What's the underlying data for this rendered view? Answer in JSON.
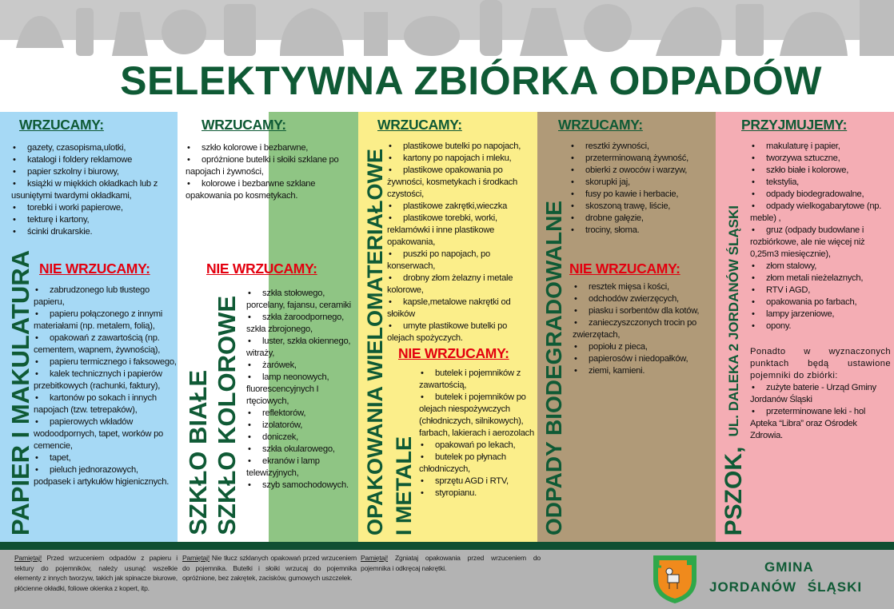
{
  "header": {
    "title": "SELEKTYWNA ZBIÓRKA ODPADÓW"
  },
  "colors": {
    "paper": "#a6d9f5",
    "glass_white": "#ffffff",
    "glass_color": "#8fc584",
    "plastic": "#fbee8a",
    "bio": "#b09a78",
    "pszok": "#f4adb4",
    "dark_green": "#0f5a35",
    "red": "#e3000f"
  },
  "columns": {
    "paper": {
      "vertical_title": "PAPIER I MAKULATURA",
      "ok_heading": "WRZUCAMY:",
      "no_heading": "NIE WRZUCAMY:",
      "ok": [
        "gazety, czasopisma,ulotki,",
        "katalogi i foldery reklamowe",
        "papier szkolny i biurowy,",
        "książki w miękkich okładkach lub z usuniętymi twardymi okładkami,",
        "torebki i worki papierowe,",
        "tekturę i kartony,",
        "ścinki drukarskie."
      ],
      "no": [
        "zabrudzonego lub tłustego papieru,",
        "papieru połączonego z innymi materiałami (np. metalem, folią),",
        "opakowań z zawartością (np. cementem, wapnem, żywnością),",
        "papieru termicznego i faksowego,",
        "kalek technicznych i papierów przebitkowych (rachunki, faktury),",
        "kartonów po sokach i innych napojach (tzw. tetrepaków),",
        "papierowych wkładów wodoodpornych, tapet, worków po cemencie,",
        "tapet,",
        "pieluch jednorazowych, podpasek i artykułów higienicznych."
      ]
    },
    "glass": {
      "vertical_title_1": "SZKŁO BIAŁE",
      "vertical_title_2": "SZKŁO KOLOROWE",
      "ok_heading": "WRZUCAMY:",
      "no_heading": "NIE WRZUCAMY:",
      "ok": [
        "szkło kolorowe i bezbarwne,",
        "opróżnione butelki i słoiki szklane po napojach i żywności,",
        "kolorowe i bezbarwne szklane opakowania po kosmetykach."
      ],
      "no": [
        "szkła stołowego, porcelany, fajansu, ceramiki",
        "szkła żaroodpornego, szkła zbrojonego,",
        "luster, szkła okiennego, witraży,",
        "żarówek,",
        "lamp neonowych, fluorescencyjnych I rtęciowych,",
        "reflektorów,",
        "izolatorów,",
        "doniczek,",
        "szkła okularowego,",
        "ekranów i lamp telewizyjnych,",
        "szyb samochodowych."
      ]
    },
    "plastic": {
      "vertical_title_1": "OPAKOWANIA WIELOMATERIAŁOWE",
      "vertical_title_2": "I METALE",
      "ok_heading": "WRZUCAMY:",
      "no_heading": "NIE WRZUCAMY:",
      "ok": [
        "plastikowe butelki po napojach,",
        "kartony po napojach i mleku,",
        "plastikowe opakowania po żywności, kosmetykach i środkach czystości,",
        "plastikowe zakrętki,wieczka",
        "plastikowe torebki, worki, reklamówki i inne plastikowe opakowania,",
        "puszki po napojach, po konserwach,",
        "drobny złom żelazny i metale kolorowe,",
        "kapsle,metalowe nakrętki od słoików",
        "umyte plastikowe butelki po olejach spożyczych."
      ],
      "no": [
        "butelek i pojemników z zawartością,",
        "butelek i pojemników po olejach niespożywczych (chłodniczych, silnikowych), farbach, lakierach i aerozolach",
        "opakowań po lekach,",
        "butelek po płynach chłodniczych,",
        "sprzętu AGD i RTV,",
        "styropianu."
      ]
    },
    "bio": {
      "vertical_title": "ODPADY BIODEGRADOWALNE",
      "ok_heading": "WRZUCAMY:",
      "no_heading": "NIE WRZUCAMY:",
      "ok": [
        "resztki żywności,",
        "przeterminowaną żywność,",
        "obierki z owoców i warzyw,",
        "skorupki jaj,",
        "fusy po kawie i herbacie,",
        "skoszoną trawę, liście,",
        "drobne gałęzie,",
        "trociny, słoma."
      ],
      "no": [
        "resztek mięsa i kości,",
        "odchodów zwierzęcych,",
        "piasku i sorbentów dla kotów,",
        "zanieczyszczonych trocin po zwierzętach,",
        "popiołu z pieca,",
        "papierosów i niedopałków,",
        "ziemi, kamieni."
      ]
    },
    "pszok": {
      "vertical_title_1": "PSZOK,",
      "vertical_title_2": "UL. DALEKA 2 JORDANÓW ŚLĄSKI",
      "ok_heading": "PRZYJMUJEMY:",
      "ok": [
        "makulaturę i papier,",
        "tworzywa sztuczne,",
        "szkło białe i kolorowe,",
        "tekstylia,",
        "odpady biodegradowalne,",
        "odpady wielkogabarytowe (np. meble) ,",
        "gruz (odpady budowlane i rozbiórkowe, ale nie więcej niż 0,25m3 miesięcznie),",
        "złom stalowy,",
        "złom metali nieżelaznych,",
        "RTV i AGD,",
        "opakowania po farbach,",
        "lampy jarzeniowe,",
        "opony."
      ],
      "extra_intro": "Ponadto w wyznaczonych punktach będą ustawione pojemniki do zbiórki:",
      "extra": [
        "zużyte baterie - Urząd Gminy Jordanów Śląski",
        "przeterminowane leki - hol Apteka “Libra” oraz Ośrodek Zdrowia."
      ]
    }
  },
  "footer": {
    "notes": [
      {
        "label": "Pamiętaj!",
        "text": " Przed wrzuceniem odpadów z papieru i tektury do pojemników, należy usunąć wszelkie elementy z innych tworzyw, takich jak spinacze biurowe, płócienne okładki, foliowe okienka z kopert, itp."
      },
      {
        "label": "Pamiętaj!",
        "text": " Nie tłucz szklanych opakowań przed wrzuceniem do pojemnika. Butelki i słoiki wrzucaj do pojemnika opróżnione, bez zakrętek, zacisków, gumowych uszczelek."
      },
      {
        "label": "Pamiętaj!",
        "text": " Zgniataj opakowania przed wrzuceniem do pojemnika i odkręcaj nakrętki."
      }
    ],
    "org_line1": "GMINA",
    "org_line2": "JORDANÓW ŚLĄSKI"
  }
}
